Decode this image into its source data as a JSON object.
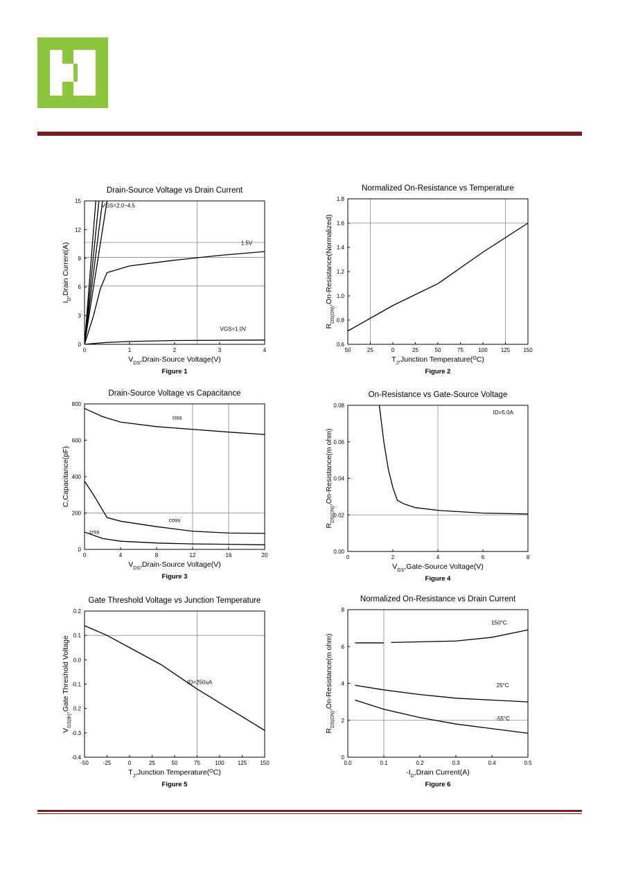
{
  "chart_data": [
    {
      "type": "line",
      "title": "Drain-Source Voltage vs Drain Current",
      "caption": "Figure 1",
      "xlabel": [
        "V",
        {
          "sub": "DS"
        },
        ",Drain-Source Voltage(V)"
      ],
      "ylabel": [
        "I",
        {
          "sub": "D"
        },
        ",Drain Current(A)"
      ],
      "xlim": [
        0,
        4
      ],
      "xticks": [
        0,
        1,
        2,
        3,
        4
      ],
      "ylim": [
        0,
        15
      ],
      "yticks": [
        0,
        3,
        6,
        9,
        12,
        15
      ],
      "gridlines": {
        "x": [
          2.5
        ],
        "y": [
          6.1,
          9.1,
          10.65
        ]
      },
      "series": [
        {
          "color": "#000000",
          "x": [
            0,
            0.25
          ],
          "values": [
            0,
            15
          ]
        },
        {
          "color": "#000000",
          "x": [
            0,
            0.32
          ],
          "values": [
            0,
            15
          ]
        },
        {
          "color": "#000000",
          "x": [
            0,
            0.4
          ],
          "values": [
            0,
            15
          ]
        },
        {
          "color": "#000000",
          "x": [
            0,
            0.5
          ],
          "values": [
            0,
            15
          ]
        },
        {
          "color": "#000000",
          "x": [
            0,
            0.2,
            0.35,
            0.5,
            1,
            2,
            3,
            4
          ],
          "values": [
            0,
            3,
            5.8,
            7.5,
            8.2,
            8.8,
            9.3,
            9.7
          ]
        },
        {
          "color": "#000000",
          "x": [
            0,
            0.5,
            1,
            2,
            4
          ],
          "values": [
            0,
            0.2,
            0.3,
            0.4,
            0.45
          ]
        }
      ],
      "annotations": [
        {
          "text": "VGS=2.0~4.5",
          "x": 0.75,
          "y": 14.3
        },
        {
          "text": "1.5V",
          "x": 3.6,
          "y": 10.4
        },
        {
          "text": "VGS=1.0V",
          "x": 3.3,
          "y": 1.4
        }
      ]
    },
    {
      "type": "line",
      "title": "Normalized On-Resistance vs Temperature",
      "caption": "Figure 2",
      "xlabel": [
        "T",
        {
          "sub": "J"
        },
        ",Junction Temperature(",
        {
          "sup": "O"
        },
        "C)"
      ],
      "ylabel": [
        "R",
        {
          "sub": "DS(ON)"
        },
        ",On-Resistance(Normalized)"
      ],
      "xlim": [
        -50,
        150
      ],
      "xticks": [
        {
          "value": -50,
          "label": "50"
        },
        {
          "value": -25,
          "label": "25"
        },
        0,
        25,
        50,
        75,
        100,
        125,
        150
      ],
      "ylim": [
        0.6,
        1.8
      ],
      "yticks": [
        0.6,
        0.8,
        {
          "value": 1,
          "label": "1.0"
        },
        1.2,
        1.4,
        1.6,
        1.8
      ],
      "gridlines": {
        "x": [
          -25,
          125
        ],
        "y": [
          1.6
        ]
      },
      "series": [
        {
          "color": "#000000",
          "x": [
            -50,
            0,
            50,
            100,
            150
          ],
          "values": [
            0.71,
            0.92,
            1.1,
            1.36,
            1.6
          ]
        }
      ],
      "annotations": []
    },
    {
      "type": "line",
      "title": "Drain-Source Voltage vs Capacitance",
      "caption": "Figure 3",
      "xlabel": [
        "V",
        {
          "sub": "DS"
        },
        ",Drain-Source Voltage(V)"
      ],
      "ylabel": [
        "C,Capacitance(pF)"
      ],
      "xlim": [
        0,
        20
      ],
      "xticks": [
        0,
        4,
        8,
        12,
        16,
        20
      ],
      "ylim": [
        0,
        800
      ],
      "yticks": [
        0,
        200,
        400,
        600,
        800
      ],
      "gridlines": {
        "x": [
          12,
          16
        ],
        "y": [
          200
        ]
      },
      "series": [
        {
          "color": "#000000",
          "x": [
            0,
            2,
            4,
            8,
            12,
            16,
            20
          ],
          "values": [
            775,
            730,
            700,
            675,
            660,
            645,
            632
          ]
        },
        {
          "color": "#000000",
          "x": [
            0,
            1,
            2.5,
            4,
            8,
            12,
            16,
            20
          ],
          "values": [
            375,
            300,
            175,
            155,
            125,
            100,
            90,
            88
          ]
        },
        {
          "color": "#000000",
          "x": [
            0,
            2,
            4,
            8,
            12,
            16,
            20
          ],
          "values": [
            95,
            60,
            45,
            35,
            30,
            28,
            25
          ]
        }
      ],
      "annotations": [
        {
          "text": "ciss",
          "x": 10.3,
          "y": 715
        },
        {
          "text": "coss",
          "x": 10,
          "y": 150
        },
        {
          "text": "crss",
          "x": 1.1,
          "y": 85
        }
      ]
    },
    {
      "type": "line",
      "title": "On-Resistance vs Gate-Source Voltage",
      "caption": "Figure 4",
      "xlabel": [
        "V",
        {
          "sub": "GS"
        },
        ",Gate-Source Voltage(V)"
      ],
      "ylabel": [
        "R",
        {
          "sub": "DS(ON)"
        },
        ",On-Resistance(m ohm)"
      ],
      "xlim": [
        0,
        8
      ],
      "xticks": [
        0,
        2,
        4,
        6,
        8
      ],
      "ylim": [
        0,
        0.08
      ],
      "yticks": [
        {
          "value": 0,
          "label": "0.00"
        },
        {
          "value": 0.02,
          "label": "0.02"
        },
        {
          "value": 0.04,
          "label": "0.04"
        },
        {
          "value": 0.06,
          "label": "0.06"
        },
        {
          "value": 0.08,
          "label": "0.08"
        }
      ],
      "gridlines": {
        "x": [
          4
        ],
        "y": [
          0.02
        ]
      },
      "series": [
        {
          "color": "#000000",
          "x": [
            1.4,
            1.6,
            1.8,
            2,
            2.2,
            2.5,
            3,
            4,
            6,
            8
          ],
          "values": [
            0.08,
            0.06,
            0.045,
            0.035,
            0.028,
            0.026,
            0.024,
            0.0225,
            0.021,
            0.0205
          ]
        }
      ],
      "annotations": [
        {
          "text": "ID=5.0A",
          "x": 6.9,
          "y": 0.075
        }
      ]
    },
    {
      "type": "line",
      "title": "Gate Threshold Voltage vs Junction Temperature",
      "caption": "Figure 5",
      "xlabel": [
        "T",
        {
          "sub": "J"
        },
        ",Junction Temperature(",
        {
          "sup": "O"
        },
        "C)"
      ],
      "ylabel": [
        "V",
        {
          "sub": "GS(th)"
        },
        ",Gate Threshold Voltage"
      ],
      "xlim": [
        -50,
        150
      ],
      "xticks": [
        -50,
        -25,
        0,
        25,
        50,
        75,
        100,
        125,
        150
      ],
      "ylim": [
        -0.4,
        0.2
      ],
      "yticks": [
        -0.4,
        -0.3,
        {
          "value": -0.2,
          "label": "0.2"
        },
        -0.1,
        {
          "value": 0,
          "label": "0.0"
        },
        0.1,
        0.2
      ],
      "gridlines": {
        "x": [
          75
        ],
        "y": [
          0.1
        ]
      },
      "series": [
        {
          "color": "#000000",
          "x": [
            -50,
            -25,
            0,
            35,
            75,
            150
          ],
          "values": [
            0.14,
            0.1,
            0.05,
            -0.02,
            -0.12,
            -0.29
          ]
        }
      ],
      "annotations": [
        {
          "text": "ID=250uA",
          "x": 78,
          "y": -0.1
        }
      ]
    },
    {
      "type": "line",
      "title": "Normalized On-Resistance vs Drain Current",
      "caption": "Figure 6",
      "xlabel": [
        "-I",
        {
          "sub": "D"
        },
        ",Drain Current(A)"
      ],
      "ylabel": [
        "R",
        {
          "sub": "DS(ON)"
        },
        ",On-Resistance(m ohm)"
      ],
      "xlim": [
        0,
        0.5
      ],
      "xticks": [
        {
          "value": 0,
          "label": "0.0"
        },
        0.1,
        0.2,
        0.3,
        0.4,
        0.5
      ],
      "ylim": [
        0,
        8
      ],
      "yticks": [
        0,
        2,
        4,
        6,
        8
      ],
      "gridlines": {
        "x": [
          0.1
        ],
        "y": [
          2
        ]
      },
      "series": [
        {
          "color": "#000000",
          "x": [
            0.02,
            0.1,
            0.11,
            0.12,
            0.3,
            0.4,
            0.5
          ],
          "values": [
            6.2,
            6.2,
            null,
            6.22,
            6.3,
            6.5,
            6.9
          ]
        },
        {
          "color": "#000000",
          "x": [
            0.02,
            0.1,
            0.2,
            0.3,
            0.4,
            0.5
          ],
          "values": [
            3.9,
            3.65,
            3.4,
            3.2,
            3.1,
            3.0
          ]
        },
        {
          "color": "#000000",
          "x": [
            0.02,
            0.1,
            0.2,
            0.3,
            0.4,
            0.5
          ],
          "values": [
            3.1,
            2.6,
            2.15,
            1.8,
            1.55,
            1.3
          ]
        }
      ],
      "annotations": [
        {
          "text": "150°C",
          "x": 0.42,
          "y": 7.2
        },
        {
          "text": "25°C",
          "x": 0.43,
          "y": 3.8
        },
        {
          "text": "-55°C",
          "x": 0.43,
          "y": 2.0
        }
      ]
    }
  ]
}
